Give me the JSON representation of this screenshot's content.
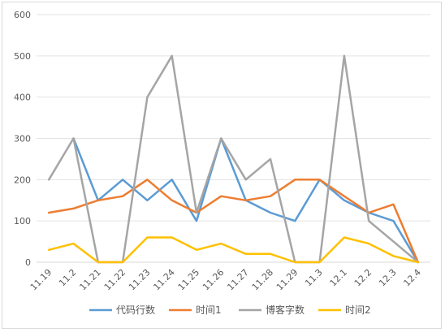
{
  "chart_data": {
    "type": "line",
    "title": "",
    "xlabel": "",
    "ylabel": "",
    "ylim": [
      0,
      600
    ],
    "yticks": [
      0,
      100,
      200,
      300,
      400,
      500,
      600
    ],
    "grid": "horizontal",
    "legend_position": "bottom",
    "categories": [
      "11.19",
      "11.2",
      "11.21",
      "11.22",
      "11.23",
      "11.24",
      "11.25",
      "11.26",
      "11.27",
      "11.28",
      "11.29",
      "11.3",
      "12.1",
      "12.2",
      "12.3",
      "12.4"
    ],
    "series": [
      {
        "name": "代码行数",
        "color": "#5b9bd5",
        "values": [
          null,
          300,
          150,
          200,
          150,
          200,
          100,
          300,
          150,
          120,
          100,
          200,
          150,
          120,
          100,
          0
        ]
      },
      {
        "name": "时间1",
        "color": "#ed7d31",
        "values": [
          120,
          130,
          150,
          160,
          200,
          150,
          120,
          160,
          150,
          160,
          200,
          200,
          160,
          120,
          140,
          0
        ]
      },
      {
        "name": "博客字数",
        "color": "#a5a5a5",
        "values": [
          200,
          300,
          0,
          0,
          400,
          500,
          120,
          300,
          200,
          250,
          0,
          0,
          500,
          100,
          50,
          0
        ]
      },
      {
        "name": "时间2",
        "color": "#ffc000",
        "values": [
          30,
          45,
          0,
          0,
          60,
          60,
          30,
          45,
          20,
          20,
          0,
          0,
          60,
          45,
          15,
          0
        ]
      }
    ]
  }
}
